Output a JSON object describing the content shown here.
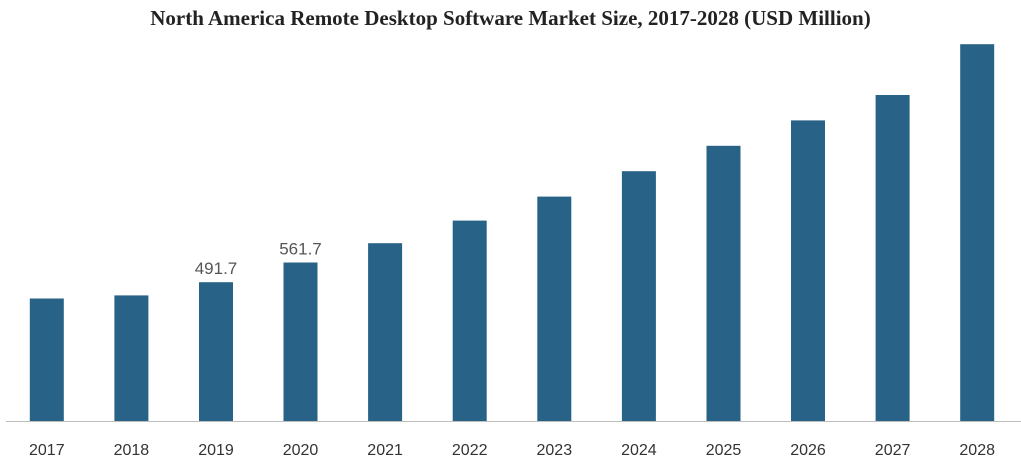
{
  "chart_data": {
    "type": "bar",
    "title": "North America Remote Desktop Software Market Size, 2017-2028 (USD Million)",
    "xlabel": "",
    "ylabel": "",
    "categories": [
      "2017",
      "2018",
      "2019",
      "2020",
      "2021",
      "2022",
      "2023",
      "2024",
      "2025",
      "2026",
      "2027",
      "2028"
    ],
    "values": [
      434,
      445,
      491.7,
      561.7,
      630,
      710,
      795,
      885,
      975,
      1065,
      1155,
      1335
    ],
    "data_labels": [
      "",
      "",
      "491.7",
      "561.7",
      "",
      "",
      "",
      "",
      "",
      "",
      "",
      ""
    ],
    "ylim": [
      0,
      1350
    ],
    "grid": false,
    "color": "#286286"
  }
}
